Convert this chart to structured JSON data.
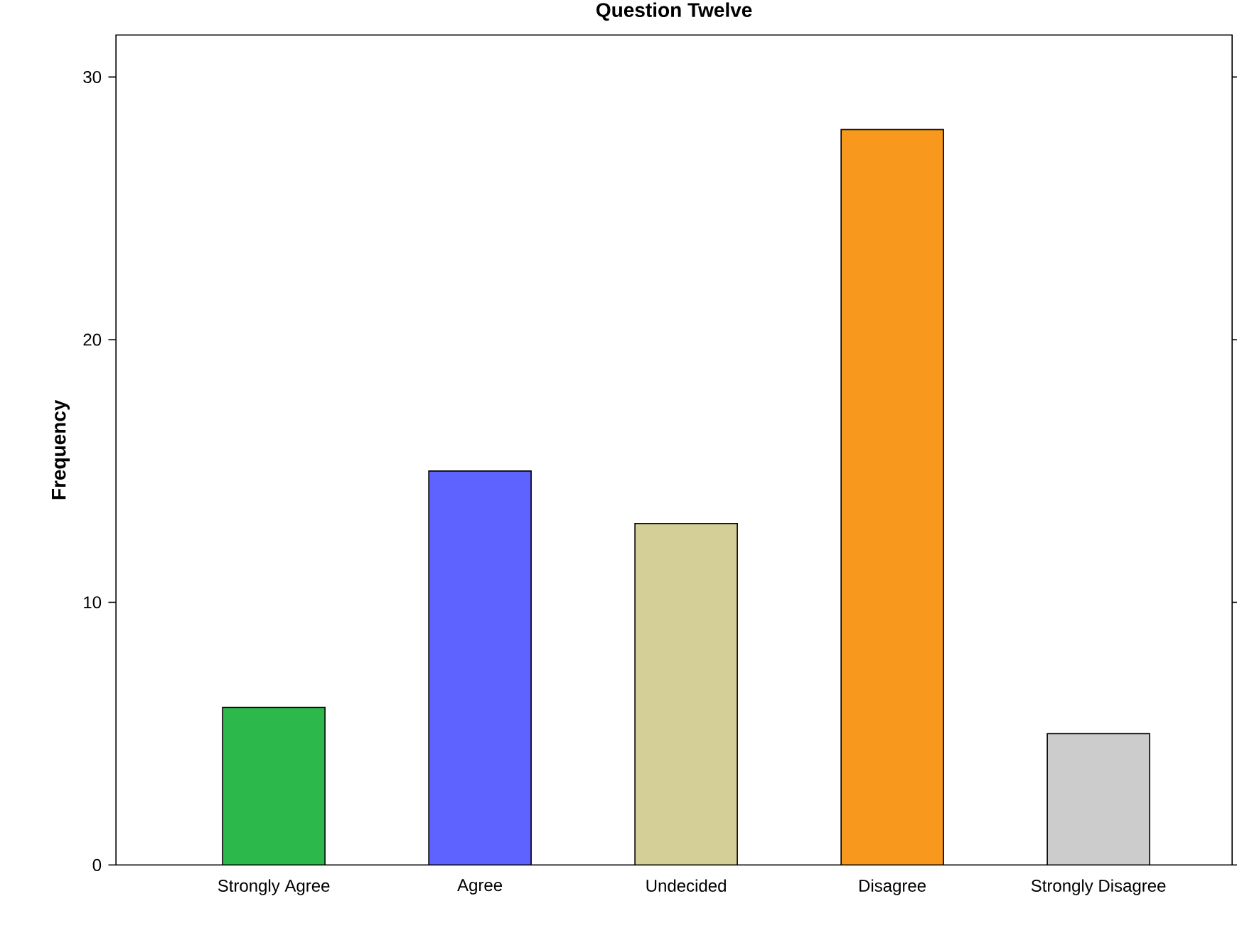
{
  "chart_data": {
    "type": "bar",
    "title": "Question Twelve",
    "ylabel": "Frequency",
    "categories": [
      "Strongly Agree",
      "Agree",
      "Undecided",
      "Disagree",
      "Strongly Disagree"
    ],
    "values": [
      6,
      15,
      13,
      28,
      5
    ],
    "colors": [
      "#2db84b",
      "#5e62ff",
      "#d4cf96",
      "#f8981d",
      "#cccccc"
    ],
    "ylim": [
      0,
      31.6
    ],
    "yticks": [
      0,
      10,
      20,
      30
    ]
  }
}
